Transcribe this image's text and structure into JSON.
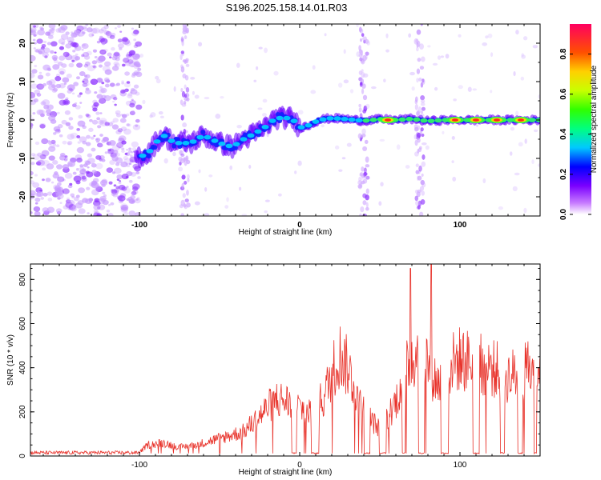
{
  "title": "S196.2025.158.14.01.R03",
  "chart_data": [
    {
      "type": "heatmap",
      "xlabel": "Height of straight line (km)",
      "ylabel": "Frequency (Hz)",
      "xlim": [
        -168,
        150
      ],
      "ylim": [
        -25,
        25
      ],
      "xticks": [
        -100,
        0,
        100
      ],
      "yticks": [
        -20,
        -10,
        0,
        10,
        20
      ],
      "colorbar": {
        "label": "Normalized spectral amplitude",
        "range": [
          0,
          0.95
        ],
        "ticks": [
          0.0,
          0.2,
          0.4,
          0.6,
          0.8
        ]
      },
      "ridge": [
        {
          "x": -100,
          "y": -9.5
        },
        {
          "x": -95,
          "y": -9
        },
        {
          "x": -90,
          "y": -6
        },
        {
          "x": -85,
          "y": -4
        },
        {
          "x": -78,
          "y": -6
        },
        {
          "x": -68,
          "y": -6
        },
        {
          "x": -60,
          "y": -4
        },
        {
          "x": -50,
          "y": -6
        },
        {
          "x": -42,
          "y": -7
        },
        {
          "x": -35,
          "y": -5
        },
        {
          "x": -28,
          "y": -3.5
        },
        {
          "x": -22,
          "y": -2
        },
        {
          "x": -15,
          "y": 0.5
        },
        {
          "x": -5,
          "y": 0.5
        },
        {
          "x": 0,
          "y": -2
        },
        {
          "x": 5,
          "y": -1.5
        },
        {
          "x": 12,
          "y": 0
        },
        {
          "x": 20,
          "y": 0.5
        },
        {
          "x": 30,
          "y": 0.2
        },
        {
          "x": 40,
          "y": -0.2
        },
        {
          "x": 50,
          "y": 0.2
        },
        {
          "x": 60,
          "y": 0
        },
        {
          "x": 70,
          "y": 0.3
        },
        {
          "x": 80,
          "y": -0.3
        },
        {
          "x": 90,
          "y": 0
        },
        {
          "x": 100,
          "y": 0
        },
        {
          "x": 110,
          "y": 0
        },
        {
          "x": 120,
          "y": 0
        },
        {
          "x": 130,
          "y": 0
        },
        {
          "x": 140,
          "y": 0
        },
        {
          "x": 148,
          "y": 0
        }
      ]
    },
    {
      "type": "line",
      "xlabel": "Height of straight line (km)",
      "ylabel": "SNR (10 * v/v)",
      "xlim": [
        -168,
        150
      ],
      "ylim": [
        0,
        870
      ],
      "xticks": [
        -100,
        0,
        100
      ],
      "yticks": [
        0,
        200,
        400,
        600,
        800
      ],
      "series_color": "#e8322a",
      "profile": [
        {
          "x": -168,
          "y": 15
        },
        {
          "x": -100,
          "y": 15
        },
        {
          "x": -95,
          "y": 50
        },
        {
          "x": -85,
          "y": 60
        },
        {
          "x": -75,
          "y": 40
        },
        {
          "x": -65,
          "y": 50
        },
        {
          "x": -55,
          "y": 70
        },
        {
          "x": -45,
          "y": 90
        },
        {
          "x": -35,
          "y": 110
        },
        {
          "x": -25,
          "y": 180
        },
        {
          "x": -15,
          "y": 260
        },
        {
          "x": -5,
          "y": 240
        },
        {
          "x": 5,
          "y": 200
        },
        {
          "x": 15,
          "y": 260
        },
        {
          "x": 20,
          "y": 380
        },
        {
          "x": 25,
          "y": 460
        },
        {
          "x": 30,
          "y": 400
        },
        {
          "x": 35,
          "y": 300
        },
        {
          "x": 40,
          "y": 220
        },
        {
          "x": 45,
          "y": 160
        },
        {
          "x": 50,
          "y": 120
        },
        {
          "x": 55,
          "y": 180
        },
        {
          "x": 60,
          "y": 250
        },
        {
          "x": 65,
          "y": 360
        },
        {
          "x": 70,
          "y": 450
        },
        {
          "x": 75,
          "y": 480
        },
        {
          "x": 80,
          "y": 430
        },
        {
          "x": 85,
          "y": 340
        },
        {
          "x": 90,
          "y": 330
        },
        {
          "x": 95,
          "y": 420
        },
        {
          "x": 100,
          "y": 440
        },
        {
          "x": 110,
          "y": 420
        },
        {
          "x": 120,
          "y": 400
        },
        {
          "x": 130,
          "y": 360
        },
        {
          "x": 140,
          "y": 380
        },
        {
          "x": 150,
          "y": 420
        }
      ],
      "peaks": [
        {
          "x": 69,
          "y": 850
        },
        {
          "x": 82,
          "y": 870
        }
      ],
      "dropouts": [
        [
          -5,
          -2
        ],
        [
          7,
          12
        ],
        [
          40,
          44
        ],
        [
          50,
          54
        ],
        [
          64,
          66
        ],
        [
          74,
          78
        ],
        [
          88,
          93
        ],
        [
          108,
          112
        ],
        [
          125,
          128
        ],
        [
          136,
          139
        ],
        [
          146,
          148
        ]
      ]
    }
  ]
}
